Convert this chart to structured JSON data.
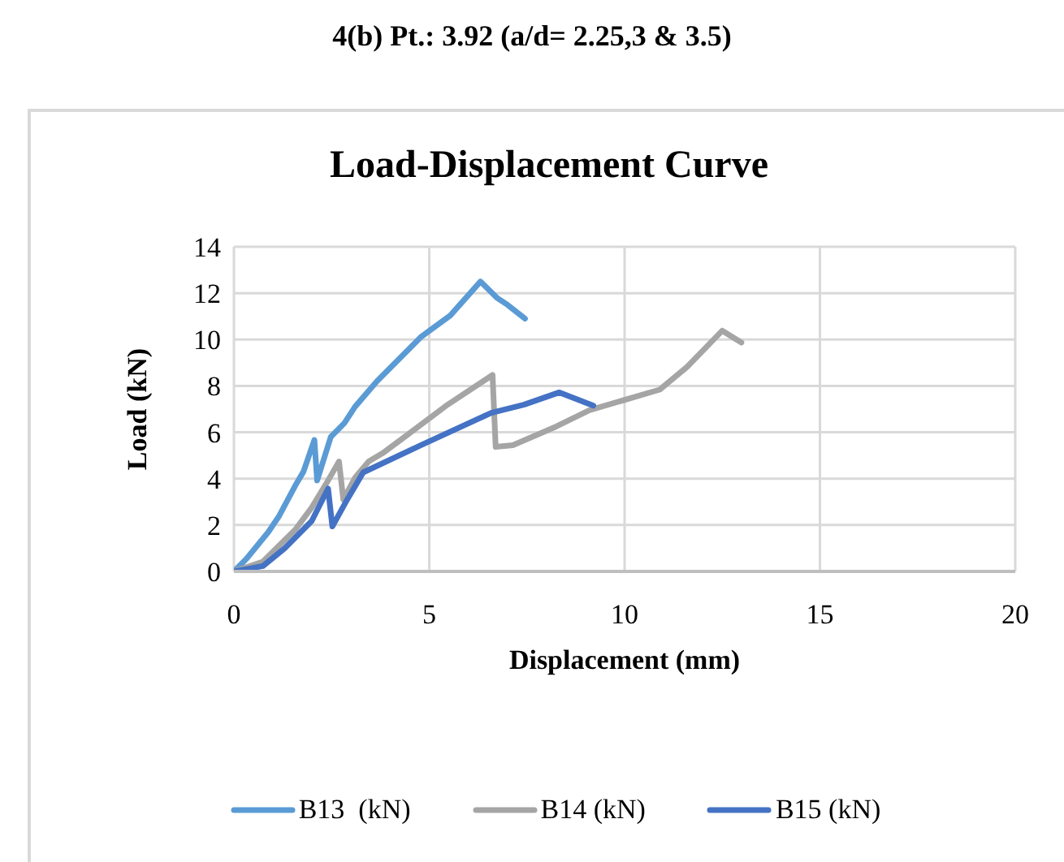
{
  "chart_data": {
    "type": "line",
    "subtitle": "4(b) Pt.: 3.92 (a/d= 2.25,3 & 3.5)",
    "title": "Load-Displacement Curve",
    "xlabel": "Displacement (mm)",
    "ylabel": "Load (kN)",
    "xlim": [
      0,
      20
    ],
    "xticks": [
      0,
      5,
      10,
      15,
      20
    ],
    "ylim": [
      0,
      14
    ],
    "yticks": [
      0,
      2,
      4,
      6,
      8,
      10,
      12,
      14
    ],
    "grid": true,
    "legend": "bottom",
    "marker": "none",
    "line_style": "solid",
    "series": [
      {
        "name": "B13  (kN)",
        "color": "#5b9bd5",
        "x": [
          0,
          0.32,
          0.88,
          1.16,
          1.57,
          1.78,
          2.06,
          2.13,
          2.48,
          2.83,
          3.1,
          3.66,
          4.78,
          5.54,
          6.31,
          6.73,
          7.0,
          7.45
        ],
        "values": [
          0,
          0.54,
          1.7,
          2.4,
          3.7,
          4.3,
          5.67,
          3.92,
          5.8,
          6.4,
          7.1,
          8.2,
          10.1,
          11.04,
          12.5,
          11.8,
          11.5,
          10.9
        ]
      },
      {
        "name": "B14 (kN)",
        "color": "#a5a5a5",
        "x": [
          0,
          0.74,
          1.57,
          1.99,
          2.41,
          2.69,
          2.8,
          3.1,
          3.45,
          3.8,
          4.36,
          5.47,
          6.62,
          6.7,
          7.14,
          8.25,
          9.1,
          10.9,
          11.6,
          12.5,
          12.99
        ],
        "values": [
          0,
          0.42,
          1.8,
          2.75,
          3.92,
          4.74,
          3.1,
          4.04,
          4.74,
          5.09,
          5.79,
          7.19,
          8.47,
          5.37,
          5.44,
          6.25,
          6.95,
          7.84,
          8.82,
          10.38,
          9.87
        ]
      },
      {
        "name": "B15 (kN)",
        "color": "#4472c4",
        "x": [
          0,
          0.74,
          1.3,
          1.99,
          2.41,
          2.52,
          2.9,
          3.31,
          4.78,
          6.59,
          7.42,
          8.33,
          9.2
        ],
        "values": [
          0,
          0.23,
          1.0,
          2.17,
          3.57,
          1.94,
          3.1,
          4.27,
          5.44,
          6.84,
          7.19,
          7.72,
          7.15
        ]
      }
    ]
  }
}
